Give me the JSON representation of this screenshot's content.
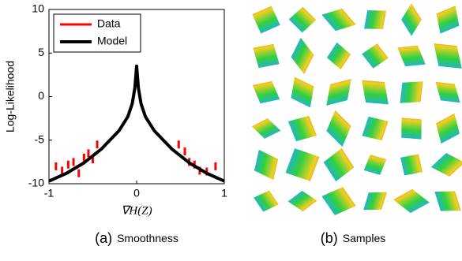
{
  "chart_data": {
    "type": "line",
    "xlabel": "∇H(Z)",
    "ylabel": "Log-Likelihood",
    "xlim": [
      -1,
      1
    ],
    "xticks": [
      -1,
      0,
      1
    ],
    "ylim": [
      -10,
      10
    ],
    "yticks": [
      -10,
      -5,
      0,
      5,
      10
    ],
    "legend": "upper-left",
    "series": [
      {
        "name": "Data",
        "color": "#ff0000",
        "style": "points",
        "x": [
          -0.92,
          -0.85,
          -0.78,
          -0.72,
          -0.66,
          -0.6,
          -0.55,
          -0.5,
          -0.45,
          0.48,
          0.55,
          0.6,
          0.66,
          0.72,
          0.8,
          0.9
        ],
        "values": [
          -8,
          -8.5,
          -7.8,
          -7.5,
          -8.8,
          -7,
          -6.5,
          -7.2,
          -5.5,
          -5.5,
          -6.3,
          -7.5,
          -7.8,
          -8.5,
          -8.6,
          -8
        ]
      },
      {
        "name": "Model",
        "color": "#000000",
        "style": "line",
        "x": [
          -1,
          -0.8,
          -0.6,
          -0.4,
          -0.2,
          -0.1,
          -0.05,
          -0.02,
          0,
          0.02,
          0.05,
          0.1,
          0.2,
          0.4,
          0.6,
          0.8,
          1
        ],
        "values": [
          -9.7,
          -8.8,
          -7.6,
          -6,
          -3.9,
          -2.3,
          -0.8,
          1,
          3.5,
          1,
          -0.8,
          -2.3,
          -3.9,
          -6,
          -7.6,
          -8.8,
          -9.7
        ]
      }
    ]
  },
  "captions": [
    {
      "label": "(a)",
      "text": "Smoothness"
    },
    {
      "label": "(b)",
      "text": "Samples"
    }
  ]
}
